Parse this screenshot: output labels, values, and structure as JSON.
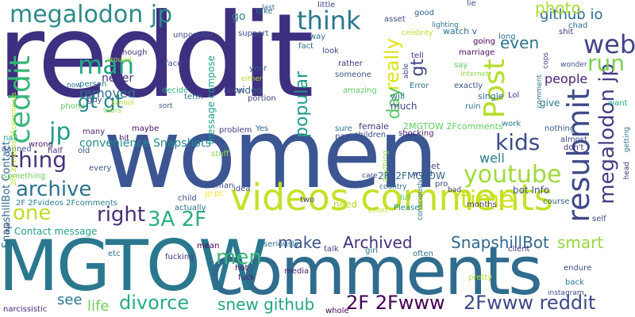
{
  "words": [
    {
      "text": "reddit",
      "color": "#3f2f80"
    },
    {
      "text": "women",
      "color": "#3b5692"
    },
    {
      "text": "MGTOW",
      "color": "#2a788e"
    },
    {
      "text": "comments",
      "color": "#2f6c8e"
    },
    {
      "text": "videos comments",
      "color": "#c6e027"
    },
    {
      "text": "megalodon jp",
      "color": "#2c8a8a"
    },
    {
      "text": "web",
      "color": "#414487"
    },
    {
      "text": "ceddit",
      "color": "#35b779"
    },
    {
      "text": "Post",
      "color": "#b5de2b"
    },
    {
      "text": "resubmit",
      "color": "#3e4a89"
    },
    {
      "text": "megalodon jp",
      "color": "#433d84"
    },
    {
      "text": "man",
      "color": "#22a884"
    },
    {
      "text": "think",
      "color": "#2a788e"
    },
    {
      "text": "run",
      "color": "#7ad151"
    },
    {
      "text": "jp",
      "color": "#1f9e89"
    },
    {
      "text": "gt gt",
      "color": "#25848e"
    },
    {
      "text": "thing",
      "color": "#46337e"
    },
    {
      "text": "archive",
      "color": "#2c728e"
    },
    {
      "text": "one",
      "color": "#bddf26"
    },
    {
      "text": "right",
      "color": "#472d7b"
    },
    {
      "text": "3A 2F",
      "color": "#29af7f"
    },
    {
      "text": "kids",
      "color": "#3d4d8a"
    },
    {
      "text": "youtube",
      "color": "#9fda3a"
    },
    {
      "text": "time",
      "color": "#d0e11c"
    },
    {
      "text": "men",
      "color": "#38b977"
    },
    {
      "text": "make",
      "color": "#3b528b"
    },
    {
      "text": "Archived",
      "color": "#46307e"
    },
    {
      "text": "SnapshillBot",
      "color": "#31688e"
    },
    {
      "text": "smart",
      "color": "#95d840"
    },
    {
      "text": "divorce",
      "color": "#27ad81"
    },
    {
      "text": "snew github",
      "color": "#22a785"
    },
    {
      "text": "2F 2Fwww",
      "color": "#440154"
    },
    {
      "text": "2Fwww reddit",
      "color": "#3e4989"
    },
    {
      "text": "see",
      "color": "#2a778e"
    },
    {
      "text": "life",
      "color": "#6ccd5a"
    },
    {
      "text": "github io",
      "color": "#2e6e8e"
    },
    {
      "text": "even",
      "color": "#2a768e"
    },
    {
      "text": "really",
      "color": "#dde318"
    },
    {
      "text": "gt",
      "color": "#3f4788"
    },
    {
      "text": "day",
      "color": "#58c765"
    },
    {
      "text": "popular",
      "color": "#1e9c89"
    },
    {
      "text": "photo",
      "color": "#addc30"
    },
    {
      "text": "people",
      "color": "#482374"
    },
    {
      "text": "removed",
      "color": "#2d718e"
    },
    {
      "text": "never",
      "color": "#453781"
    },
    {
      "text": "convenience Snapshots",
      "color": "#23898e"
    },
    {
      "text": "SnapshillBot Contact",
      "color": "#306a8e"
    },
    {
      "text": "message compose",
      "color": "#1fa088"
    },
    {
      "text": "well",
      "color": "#287c8e"
    },
    {
      "text": "go",
      "color": "#26828e"
    },
    {
      "text": "Contact message",
      "color": "#1fa187"
    },
    {
      "text": "2F 2Fvideos 2Fcomments",
      "color": "#287d8e"
    },
    {
      "text": "2Fr 2FMGTOW",
      "color": "#31688e"
    },
    {
      "text": "2MGTOW 2Fcomments",
      "color": "#60ca60"
    },
    {
      "text": "bot Info",
      "color": "#3b528b"
    },
    {
      "text": "want",
      "color": "#27ad81"
    },
    {
      "text": "jp pc",
      "color": "#fde725"
    },
    {
      "text": "need",
      "color": "#b8de29"
    },
    {
      "text": "unpopular",
      "color": "#3e4c8a"
    },
    {
      "text": "will",
      "color": "#2c738e"
    },
    {
      "text": "much",
      "color": "#404588"
    },
    {
      "text": "video",
      "color": "#33638d"
    },
    {
      "text": "give",
      "color": "#29798e"
    },
    {
      "text": "female",
      "color": "#46327e"
    },
    {
      "text": "single",
      "color": "#2f6b8e"
    },
    {
      "text": "let",
      "color": "#3e4989"
    },
    {
      "text": "watch v",
      "color": "#2e6e8e"
    },
    {
      "text": "many",
      "color": "#481b6d"
    },
    {
      "text": "hit",
      "color": "#48186a"
    },
    {
      "text": "maybe",
      "color": "#471365"
    },
    {
      "text": "woman",
      "color": "#3b518b"
    },
    {
      "text": "decide",
      "color": "#29af7f"
    },
    {
      "text": "year",
      "color": "#355f8d"
    },
    {
      "text": "look",
      "color": "#404588"
    },
    {
      "text": "someone",
      "color": "#3a548c"
    },
    {
      "text": "every",
      "color": "#3b528b"
    },
    {
      "text": "something",
      "color": "#6ccd5a"
    },
    {
      "text": "almost",
      "color": "#3f4889"
    },
    {
      "text": "don't",
      "color": "#46317e"
    },
    {
      "text": "marriage",
      "color": "#470e61"
    },
    {
      "text": "say",
      "color": "#5ec962"
    },
    {
      "text": "chad",
      "color": "#31688e"
    },
    {
      "text": "shit",
      "color": "#472f7d"
    },
    {
      "text": "Error",
      "color": "#2d708e"
    },
    {
      "text": "Lol",
      "color": "#472c7a"
    },
    {
      "text": "nothing",
      "color": "#375b8d"
    },
    {
      "text": "pro",
      "color": "#3e4a89"
    },
    {
      "text": "two",
      "color": "#433e85"
    },
    {
      "text": "Please",
      "color": "#21918c"
    },
    {
      "text": "months",
      "color": "#443a83"
    },
    {
      "text": "often",
      "color": "#2f6c8e"
    },
    {
      "text": "course",
      "color": "#34608d"
    },
    {
      "text": "fucking",
      "color": "#453882"
    },
    {
      "text": "girl",
      "color": "#2d708e"
    },
    {
      "text": "fuck",
      "color": "#482071"
    },
    {
      "text": "hot",
      "color": "#46085c"
    },
    {
      "text": "pretty",
      "color": "#b5de2b"
    },
    {
      "text": "narcissistic",
      "color": "#482878"
    },
    {
      "text": "whole",
      "color": "#46085c"
    },
    {
      "text": "seriously",
      "color": "#2c728e"
    },
    {
      "text": "mean",
      "color": "#440154"
    },
    {
      "text": "talk",
      "color": "#433d84"
    },
    {
      "text": "client",
      "color": "#46307e"
    },
    {
      "text": "endure",
      "color": "#3e4a89"
    },
    {
      "text": "back",
      "color": "#2a768e"
    },
    {
      "text": "self",
      "color": "#404387"
    },
    {
      "text": "media",
      "color": "#48196b"
    },
    {
      "text": "children",
      "color": "#3a538b"
    },
    {
      "text": "problem",
      "color": "#453781"
    },
    {
      "text": "Yes",
      "color": "#31688e"
    },
    {
      "text": "sure",
      "color": "#2d708e"
    },
    {
      "text": "pay",
      "color": "#3e4a89"
    },
    {
      "text": "shocking",
      "color": "#482071"
    },
    {
      "text": "work",
      "color": "#2a788e"
    },
    {
      "text": "nail",
      "color": "#1f9e89"
    },
    {
      "text": "danned",
      "color": "#3b528b"
    },
    {
      "text": "half",
      "color": "#472d7b"
    },
    {
      "text": "old",
      "color": "#3b528b"
    },
    {
      "text": "wrong",
      "color": "#481c6e"
    },
    {
      "text": "child",
      "color": "#3e4989"
    },
    {
      "text": "idea",
      "color": "#3b528b"
    },
    {
      "text": "actually",
      "color": "#2d708e"
    },
    {
      "text": "stuff",
      "color": "#8fd744"
    },
    {
      "text": "face",
      "color": "#3b528b"
    },
    {
      "text": "though",
      "color": "#46307e"
    },
    {
      "text": "person",
      "color": "#2c728e"
    },
    {
      "text": "guy",
      "color": "#404588"
    },
    {
      "text": "phone",
      "color": "#5ec962"
    },
    {
      "text": "term",
      "color": "#2d708e"
    },
    {
      "text": "portion",
      "color": "#404387"
    },
    {
      "text": "know",
      "color": "#3e4a89"
    },
    {
      "text": "support",
      "color": "#3b528b"
    },
    {
      "text": "take",
      "color": "#2c728e"
    },
    {
      "text": "fact",
      "color": "#2d708e"
    },
    {
      "text": "way",
      "color": "#2c728e"
    },
    {
      "text": "rather",
      "color": "#472d7b"
    },
    {
      "text": "amazing",
      "color": "#60ca60"
    },
    {
      "text": "exactly",
      "color": "#3b528b"
    },
    {
      "text": "ruin",
      "color": "#2d708e"
    },
    {
      "text": "asset",
      "color": "#3e4a89"
    },
    {
      "text": "good",
      "color": "#33638d"
    },
    {
      "text": "celebrity",
      "color": "#b5de2b"
    },
    {
      "text": "long",
      "color": "#2c728e"
    },
    {
      "text": "tell",
      "color": "#472d7b"
    },
    {
      "text": "lie",
      "color": "#3b528b"
    },
    {
      "text": "little",
      "color": "#404387"
    },
    {
      "text": "lighting",
      "color": "#2d708e"
    },
    {
      "text": "going",
      "color": "#440154"
    },
    {
      "text": "anything",
      "color": "#8fd744"
    },
    {
      "text": "consciously",
      "color": "#2c728e"
    },
    {
      "text": "Internet",
      "color": "#8fd744"
    },
    {
      "text": "able",
      "color": "#404588"
    },
    {
      "text": "either",
      "color": "#b5de2b"
    },
    {
      "text": "wonder",
      "color": "#3b528b"
    },
    {
      "text": "cops",
      "color": "#404387"
    },
    {
      "text": "getting",
      "color": "#2d708e"
    },
    {
      "text": "head",
      "color": "#472d7b"
    },
    {
      "text": "instagram",
      "color": "#3e4a89"
    },
    {
      "text": "full",
      "color": "#5ec962"
    },
    {
      "text": "bad",
      "color": "#404588"
    },
    {
      "text": "country",
      "color": "#2c728e"
    },
    {
      "text": "world",
      "color": "#3b528b"
    },
    {
      "text": "effort",
      "color": "#b5de2b"
    },
    {
      "text": "care",
      "color": "#404387"
    },
    {
      "text": "last",
      "color": "#2d708e"
    },
    {
      "text": "live",
      "color": "#404588"
    },
    {
      "text": "sort",
      "color": "#3b528b"
    },
    {
      "text": "tours",
      "color": "#8fd744"
    },
    {
      "text": "school",
      "color": "#b5de2b"
    },
    {
      "text": "now",
      "color": "#2c728e"
    },
    {
      "text": "etc",
      "color": "#2d708e"
    },
    {
      "text": "around",
      "color": "#b5de2b"
    },
    {
      "text": "2Fr 2Fvideos 2Fcomments",
      "color": "#b5de2b"
    },
    {
      "text": "comment",
      "color": "#2c728e"
    }
  ]
}
